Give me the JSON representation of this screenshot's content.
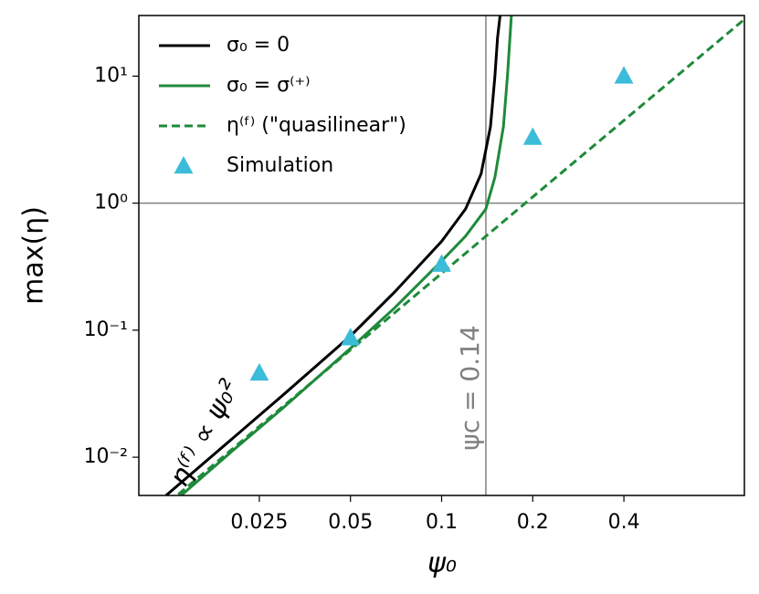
{
  "chart_data": {
    "type": "line",
    "log_x": true,
    "log_y": true,
    "x_label": "ψ₀",
    "y_label": "max(η)",
    "xlim": [
      0.01,
      1
    ],
    "ylim": [
      0.005,
      30
    ],
    "xticks": [
      0.025,
      0.05,
      0.1,
      0.2,
      0.4
    ],
    "yticks": [
      {
        "value": 0.01,
        "label": "10⁻²"
      },
      {
        "value": 0.1,
        "label": "10⁻¹"
      },
      {
        "value": 1,
        "label": "10⁰"
      },
      {
        "value": 10,
        "label": "10¹"
      }
    ],
    "legend": "upper left",
    "vline": 0.14,
    "hline": 1,
    "annotations": [
      "ψc = 0.14",
      "η⁽ᶠ⁾ ∝ ψ₀²"
    ],
    "series": [
      {
        "name": "σ₀ = 0",
        "color": "#000000",
        "style": "solid",
        "x": [
          0.0123,
          0.02,
          0.03,
          0.05,
          0.07,
          0.1,
          0.12,
          0.135,
          0.145,
          0.15,
          0.153,
          0.156
        ],
        "values": [
          0.005,
          0.0135,
          0.031,
          0.09,
          0.2,
          0.5,
          0.9,
          1.7,
          4,
          10,
          20,
          30
        ]
      },
      {
        "name": "σ₀ = σ⁽⁺⁾",
        "color": "#1e8a3a",
        "style": "solid",
        "x": [
          0.0138,
          0.02,
          0.03,
          0.05,
          0.07,
          0.1,
          0.12,
          0.14,
          0.15,
          0.16,
          0.165,
          0.17
        ],
        "values": [
          0.005,
          0.0108,
          0.0245,
          0.072,
          0.15,
          0.35,
          0.55,
          0.9,
          1.6,
          4,
          10,
          30
        ]
      },
      {
        "name": "η⁽ᶠ⁾ (\"quasilinear\")",
        "color": "#1e8a3a",
        "style": "dashed",
        "x": [
          0.0135,
          0.02,
          0.05,
          0.1,
          0.2,
          0.5,
          1
        ],
        "values": [
          0.0051,
          0.0112,
          0.07,
          0.28,
          1.12,
          7,
          28
        ]
      },
      {
        "name": "Simulation",
        "color": "#3bbcd8",
        "style": "marker",
        "x": [
          0.025,
          0.05,
          0.1,
          0.2,
          0.4
        ],
        "values": [
          0.046,
          0.087,
          0.33,
          3.3,
          10
        ]
      }
    ]
  }
}
